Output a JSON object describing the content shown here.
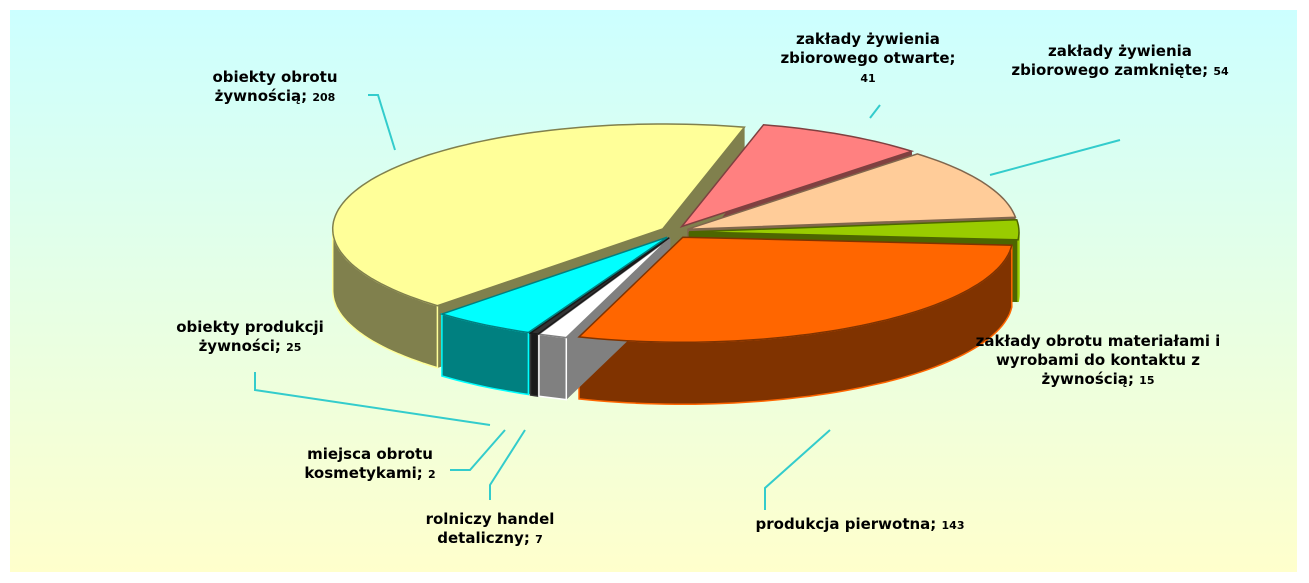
{
  "chart_data": {
    "type": "pie3d",
    "categories": [
      "zakłady żywienia zbiorowego otwarte",
      "zakłady żywienia zbiorowego zamknięte",
      "zakłady obrotu materiałami i wyrobami do kontaktu z żywnością",
      "produkcja pierwotna",
      "rolniczy handel detaliczny",
      "miejsca obrotu kosmetykami",
      "obiekty produkcji żywności",
      "obiekty obrotu żywnością"
    ],
    "values": [
      41,
      54,
      15,
      143,
      7,
      2,
      25,
      208
    ],
    "colors": [
      "#ff8080",
      "#ffcc99",
      "#99cc00",
      "#ff6600",
      "#ffffff",
      "#333333",
      "#00ffff",
      "#ffff99"
    ],
    "label_separator": "; "
  }
}
